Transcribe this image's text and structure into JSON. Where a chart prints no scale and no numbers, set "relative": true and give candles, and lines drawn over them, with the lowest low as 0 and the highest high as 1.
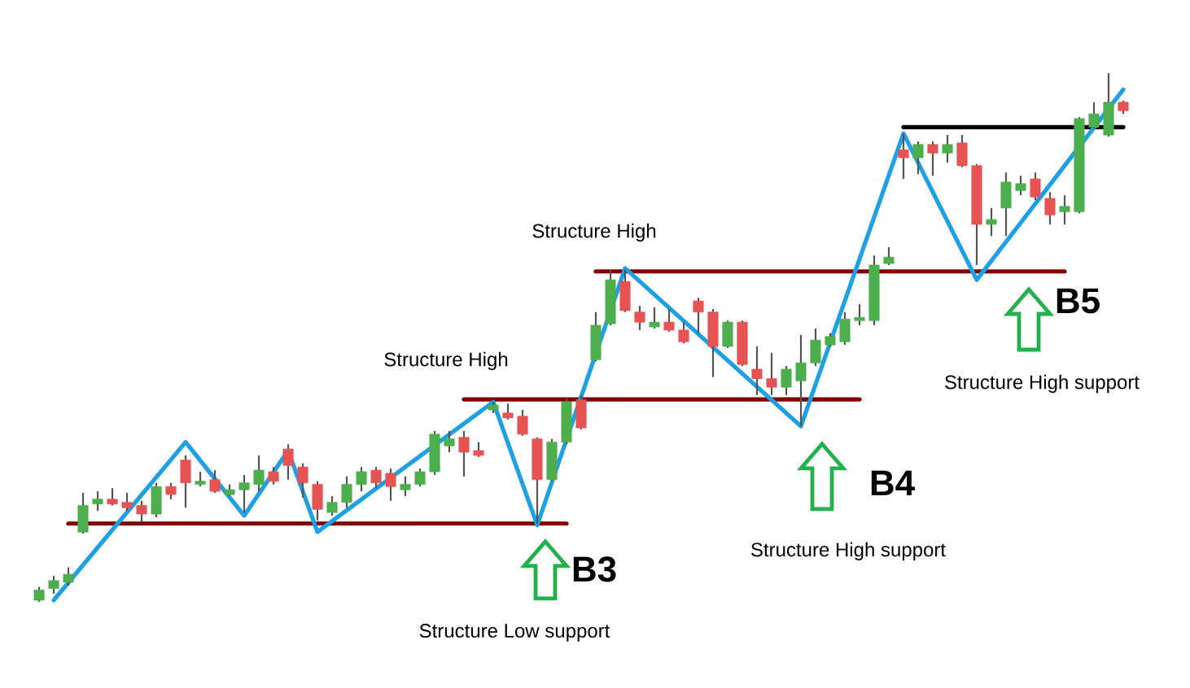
{
  "chart_data": {
    "type": "candlestick",
    "relative": true,
    "categories": [
      null,
      null,
      null,
      null,
      null,
      null,
      null,
      null,
      null,
      null,
      null,
      null,
      null,
      null,
      null,
      null,
      null,
      null,
      null,
      null,
      null,
      null,
      null,
      null,
      null,
      null,
      null,
      null,
      null,
      null,
      null,
      null,
      null,
      null,
      null,
      null,
      null,
      null,
      null,
      null,
      null,
      null,
      null,
      null,
      null,
      null,
      null,
      null,
      null,
      null,
      null,
      null,
      null,
      null,
      null,
      null,
      null,
      null,
      null,
      null,
      null,
      null,
      null,
      null,
      null,
      null,
      null,
      null,
      null,
      null,
      null,
      null,
      null,
      null,
      null
    ],
    "ohlc": [
      [
        0.003,
        0.028,
        0,
        0.022
      ],
      [
        0.025,
        0.049,
        0.015,
        0.04
      ],
      [
        0.037,
        0.065,
        0.031,
        0.052
      ],
      [
        0.132,
        0.206,
        0.129,
        0.182
      ],
      [
        0.185,
        0.209,
        0.172,
        0.194
      ],
      [
        0.194,
        0.215,
        0.182,
        0.185
      ],
      [
        0.188,
        0.206,
        0.172,
        0.178
      ],
      [
        0.182,
        0.191,
        0.151,
        0.166
      ],
      [
        0.166,
        0.225,
        0.16,
        0.218
      ],
      [
        0.218,
        0.225,
        0.194,
        0.203
      ],
      [
        0.268,
        0.277,
        0.178,
        0.225
      ],
      [
        0.222,
        0.246,
        0.218,
        0.228
      ],
      [
        0.231,
        0.249,
        0.206,
        0.209
      ],
      [
        0.203,
        0.222,
        0.2,
        0.212
      ],
      [
        0.212,
        0.24,
        0.169,
        0.225
      ],
      [
        0.222,
        0.277,
        0.209,
        0.249
      ],
      [
        0.246,
        0.255,
        0.222,
        0.228
      ],
      [
        0.289,
        0.298,
        0.231,
        0.258
      ],
      [
        0.255,
        0.262,
        0.197,
        0.225
      ],
      [
        0.222,
        0.228,
        0.154,
        0.175
      ],
      [
        0.169,
        0.2,
        0.163,
        0.188
      ],
      [
        0.188,
        0.237,
        0.178,
        0.222
      ],
      [
        0.222,
        0.255,
        0.209,
        0.246
      ],
      [
        0.249,
        0.255,
        0.215,
        0.225
      ],
      [
        0.243,
        0.252,
        0.191,
        0.218
      ],
      [
        0.212,
        0.237,
        0.2,
        0.222
      ],
      [
        0.222,
        0.252,
        0.218,
        0.246
      ],
      [
        0.246,
        0.323,
        0.24,
        0.317
      ],
      [
        0.295,
        0.323,
        0.283,
        0.308
      ],
      [
        0.311,
        0.323,
        0.237,
        0.283
      ],
      [
        0.286,
        0.302,
        0.274,
        0.277
      ],
      [
        0.363,
        0.378,
        0.357,
        0.372
      ],
      [
        0.357,
        0.375,
        0.345,
        0.348
      ],
      [
        0.351,
        0.363,
        0.314,
        0.317
      ],
      [
        0.308,
        0.311,
        0.148,
        0.231
      ],
      [
        0.231,
        0.308,
        0.228,
        0.302
      ],
      [
        0.302,
        0.385,
        0.298,
        0.378
      ],
      [
        0.382,
        0.391,
        0.326,
        0.329
      ],
      [
        0.458,
        0.548,
        0.455,
        0.523
      ],
      [
        0.526,
        0.628,
        0.523,
        0.609
      ],
      [
        0.606,
        0.628,
        0.548,
        0.551
      ],
      [
        0.548,
        0.56,
        0.514,
        0.529
      ],
      [
        0.52,
        0.557,
        0.517,
        0.529
      ],
      [
        0.529,
        0.554,
        0.511,
        0.514
      ],
      [
        0.514,
        0.529,
        0.489,
        0.492
      ],
      [
        0.569,
        0.575,
        0.508,
        0.548
      ],
      [
        0.548,
        0.554,
        0.425,
        0.483
      ],
      [
        0.483,
        0.532,
        0.48,
        0.529
      ],
      [
        0.529,
        0.532,
        0.446,
        0.449
      ],
      [
        0.44,
        0.483,
        0.391,
        0.422
      ],
      [
        0.422,
        0.471,
        0.391,
        0.406
      ],
      [
        0.406,
        0.446,
        0.391,
        0.44
      ],
      [
        0.418,
        0.505,
        0.332,
        0.452
      ],
      [
        0.452,
        0.517,
        0.446,
        0.495
      ],
      [
        0.486,
        0.508,
        0.483,
        0.502
      ],
      [
        0.492,
        0.548,
        0.486,
        0.535
      ],
      [
        0.532,
        0.563,
        0.523,
        0.538
      ],
      [
        0.532,
        0.655,
        0.523,
        0.637
      ],
      [
        0.64,
        0.671,
        0.637,
        0.652
      ],
      [
        0.855,
        0.886,
        0.8,
        0.84
      ],
      [
        0.84,
        0.871,
        0.809,
        0.865
      ],
      [
        0.865,
        0.871,
        0.806,
        0.849
      ],
      [
        0.849,
        0.883,
        0.831,
        0.865
      ],
      [
        0.868,
        0.883,
        0.822,
        0.825
      ],
      [
        0.825,
        0.828,
        0.637,
        0.714
      ],
      [
        0.714,
        0.745,
        0.692,
        0.723
      ],
      [
        0.745,
        0.812,
        0.692,
        0.794
      ],
      [
        0.778,
        0.806,
        0.769,
        0.791
      ],
      [
        0.8,
        0.812,
        0.76,
        0.766
      ],
      [
        0.763,
        0.775,
        0.714,
        0.732
      ],
      [
        0.738,
        0.769,
        0.714,
        0.748
      ],
      [
        0.738,
        0.917,
        0.735,
        0.914
      ],
      [
        0.898,
        0.945,
        0.895,
        0.923
      ],
      [
        0.883,
        1,
        0.88,
        0.945
      ],
      [
        0.945,
        0.948,
        0.923,
        0.929
      ]
    ],
    "colors": [
      "#4cae4c",
      "#4cae4c",
      "#4cae4c",
      "#4cae4c",
      "#4cae4c",
      "#e55353",
      "#e55353",
      "#e55353",
      "#4cae4c",
      "#e55353",
      "#e55353",
      "#4cae4c",
      "#e55353",
      "#4cae4c",
      "#4cae4c",
      "#4cae4c",
      "#e55353",
      "#e55353",
      "#e55353",
      "#e55353",
      "#4cae4c",
      "#4cae4c",
      "#4cae4c",
      "#e55353",
      "#e55353",
      "#4cae4c",
      "#4cae4c",
      "#4cae4c",
      "#4cae4c",
      "#e55353",
      "#e55353",
      "#4cae4c",
      "#e55353",
      "#e55353",
      "#e55353",
      "#4cae4c",
      "#4cae4c",
      "#e55353",
      "#4cae4c",
      "#4cae4c",
      "#e55353",
      "#e55353",
      "#4cae4c",
      "#e55353",
      "#e55353",
      "#e55353",
      "#e55353",
      "#4cae4c",
      "#e55353",
      "#e55353",
      "#e55353",
      "#4cae4c",
      "#4cae4c",
      "#4cae4c",
      "#4cae4c",
      "#4cae4c",
      "#4cae4c",
      "#4cae4c",
      "#4cae4c",
      "#e55353",
      "#4cae4c",
      "#e55353",
      "#4cae4c",
      "#e55353",
      "#e55353",
      "#4cae4c",
      "#4cae4c",
      "#4cae4c",
      "#e55353",
      "#e55353",
      "#4cae4c",
      "#4cae4c",
      "#4cae4c",
      "#4cae4c",
      "#e55353"
    ],
    "series": [
      {
        "type": "line",
        "color": "#800000",
        "values": [
          null,
          null,
          0.148,
          null,
          null,
          null,
          null,
          null,
          null,
          null,
          null,
          null,
          null,
          null,
          null,
          null,
          null,
          null,
          null,
          null,
          null,
          null,
          null,
          null,
          null,
          null,
          null,
          null,
          null,
          null,
          null,
          null,
          null,
          null,
          null,
          null,
          0.148,
          null,
          null,
          null,
          null,
          null,
          null,
          null,
          null,
          null,
          null,
          null,
          null,
          null,
          null,
          null,
          null,
          null,
          null,
          null,
          null,
          null,
          null,
          null,
          null,
          null,
          null,
          null,
          null,
          null,
          null,
          null,
          null,
          null,
          null,
          null,
          null,
          null,
          null
        ]
      },
      {
        "type": "line",
        "color": "#800000",
        "values": [
          null,
          null,
          null,
          null,
          null,
          null,
          null,
          null,
          null,
          null,
          null,
          null,
          null,
          null,
          null,
          null,
          null,
          null,
          null,
          null,
          null,
          null,
          null,
          null,
          null,
          null,
          null,
          null,
          null,
          0.383,
          null,
          null,
          null,
          null,
          null,
          null,
          null,
          null,
          null,
          null,
          null,
          null,
          null,
          null,
          null,
          null,
          null,
          null,
          null,
          null,
          null,
          null,
          null,
          null,
          null,
          null,
          0.383,
          null,
          null,
          null,
          null,
          null,
          null,
          null,
          null,
          null,
          null,
          null,
          null,
          null,
          null,
          null,
          null,
          null,
          null
        ]
      },
      {
        "type": "line",
        "color": "#800000",
        "values": [
          null,
          null,
          null,
          null,
          null,
          null,
          null,
          null,
          null,
          null,
          null,
          null,
          null,
          null,
          null,
          null,
          null,
          null,
          null,
          null,
          null,
          null,
          null,
          null,
          null,
          null,
          null,
          null,
          null,
          null,
          null,
          null,
          null,
          null,
          null,
          null,
          null,
          null,
          0.625,
          null,
          null,
          null,
          null,
          null,
          null,
          null,
          null,
          null,
          null,
          null,
          null,
          null,
          null,
          null,
          null,
          null,
          null,
          null,
          null,
          null,
          null,
          null,
          null,
          null,
          null,
          null,
          null,
          null,
          null,
          null,
          0.625,
          null,
          null,
          null,
          null
        ]
      },
      {
        "type": "line",
        "color": "#000000",
        "values": [
          null,
          null,
          null,
          null,
          null,
          null,
          null,
          null,
          null,
          null,
          null,
          null,
          null,
          null,
          null,
          null,
          null,
          null,
          null,
          null,
          null,
          null,
          null,
          null,
          null,
          null,
          null,
          null,
          null,
          null,
          null,
          null,
          null,
          null,
          null,
          null,
          null,
          null,
          null,
          null,
          null,
          null,
          null,
          null,
          null,
          null,
          null,
          null,
          null,
          null,
          null,
          null,
          null,
          null,
          null,
          null,
          null,
          null,
          null,
          0.898,
          null,
          null,
          null,
          null,
          null,
          null,
          null,
          null,
          null,
          null,
          null,
          null,
          null,
          null,
          0.898
        ]
      },
      {
        "type": "line",
        "color": "#1ea0e6",
        "values": [
          null,
          0.003,
          null,
          null,
          null,
          null,
          null,
          null,
          null,
          null,
          0.302,
          null,
          null,
          null,
          0.163,
          null,
          null,
          0.286,
          null,
          0.132,
          null,
          null,
          null,
          null,
          null,
          null,
          null,
          null,
          null,
          null,
          null,
          0.378,
          null,
          null,
          0.145,
          null,
          null,
          null,
          null,
          null,
          0.631,
          null,
          null,
          null,
          null,
          null,
          null,
          null,
          null,
          null,
          null,
          null,
          0.332,
          null,
          null,
          null,
          null,
          null,
          null,
          0.886,
          null,
          null,
          null,
          null,
          0.609,
          null,
          null,
          null,
          null,
          null,
          null,
          null,
          null,
          null,
          0.969
        ]
      }
    ],
    "annotations": [
      "Structure High",
      "B3",
      "Structure Low support",
      "Structure High",
      "B4",
      "Structure High support",
      "B5",
      "Structure High support"
    ]
  }
}
